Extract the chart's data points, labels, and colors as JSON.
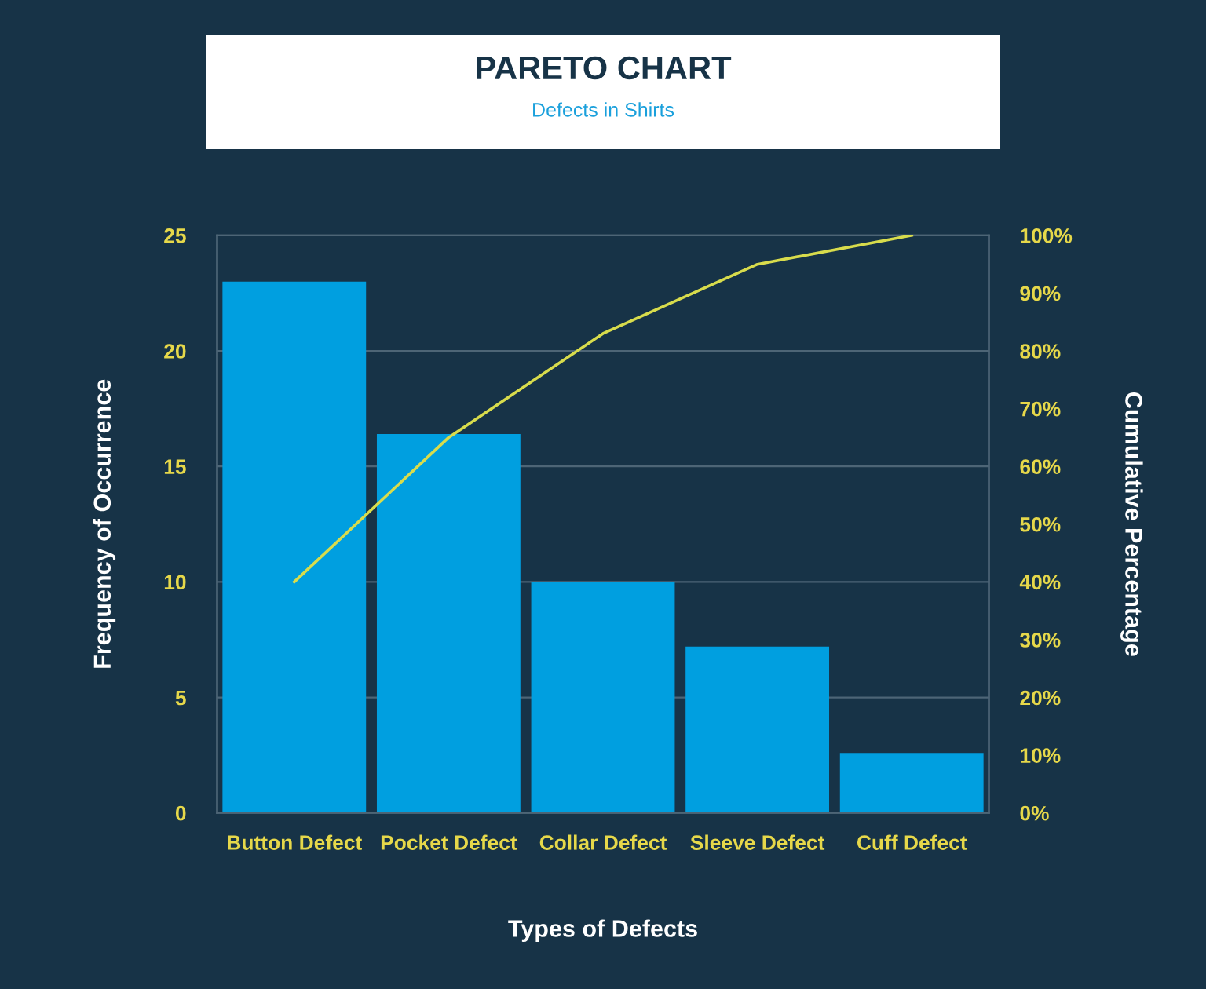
{
  "chart_data": {
    "type": "bar",
    "title": "PARETO CHART",
    "subtitle": "Defects in Shirts",
    "xlabel": "Types of Defects",
    "ylabel": "Frequency of Occurrence",
    "y2label": "Cumulative Percentage",
    "categories": [
      "Button Defect",
      "Pocket Defect",
      "Collar Defect",
      "Sleeve Defect",
      "Cuff Defect"
    ],
    "series": [
      {
        "color": "#009fe0",
        "values": [
          23,
          16.4,
          10,
          7.2,
          2.6
        ]
      },
      {
        "type": "line",
        "axis": "y2",
        "color": "#d8dc4c",
        "values": [
          40,
          65,
          83,
          95,
          100
        ]
      }
    ],
    "ylim": [
      0,
      25
    ],
    "yticks": [
      0,
      5,
      10,
      15,
      20,
      25
    ],
    "y2lim": [
      0,
      100
    ],
    "y2ticks": [
      {
        "value": 0,
        "label": "0%"
      },
      {
        "value": 10,
        "label": "10%"
      },
      {
        "value": 20,
        "label": "20%"
      },
      {
        "value": 30,
        "label": "30%"
      },
      {
        "value": 40,
        "label": "40%"
      },
      {
        "value": 50,
        "label": "50%"
      },
      {
        "value": 60,
        "label": "60%"
      },
      {
        "value": 70,
        "label": "70%"
      },
      {
        "value": 80,
        "label": "80%"
      },
      {
        "value": 90,
        "label": "90%"
      },
      {
        "value": 100,
        "label": "100%"
      }
    ],
    "grid": "y",
    "legend": false,
    "marker": "none",
    "line_style": "solid"
  }
}
